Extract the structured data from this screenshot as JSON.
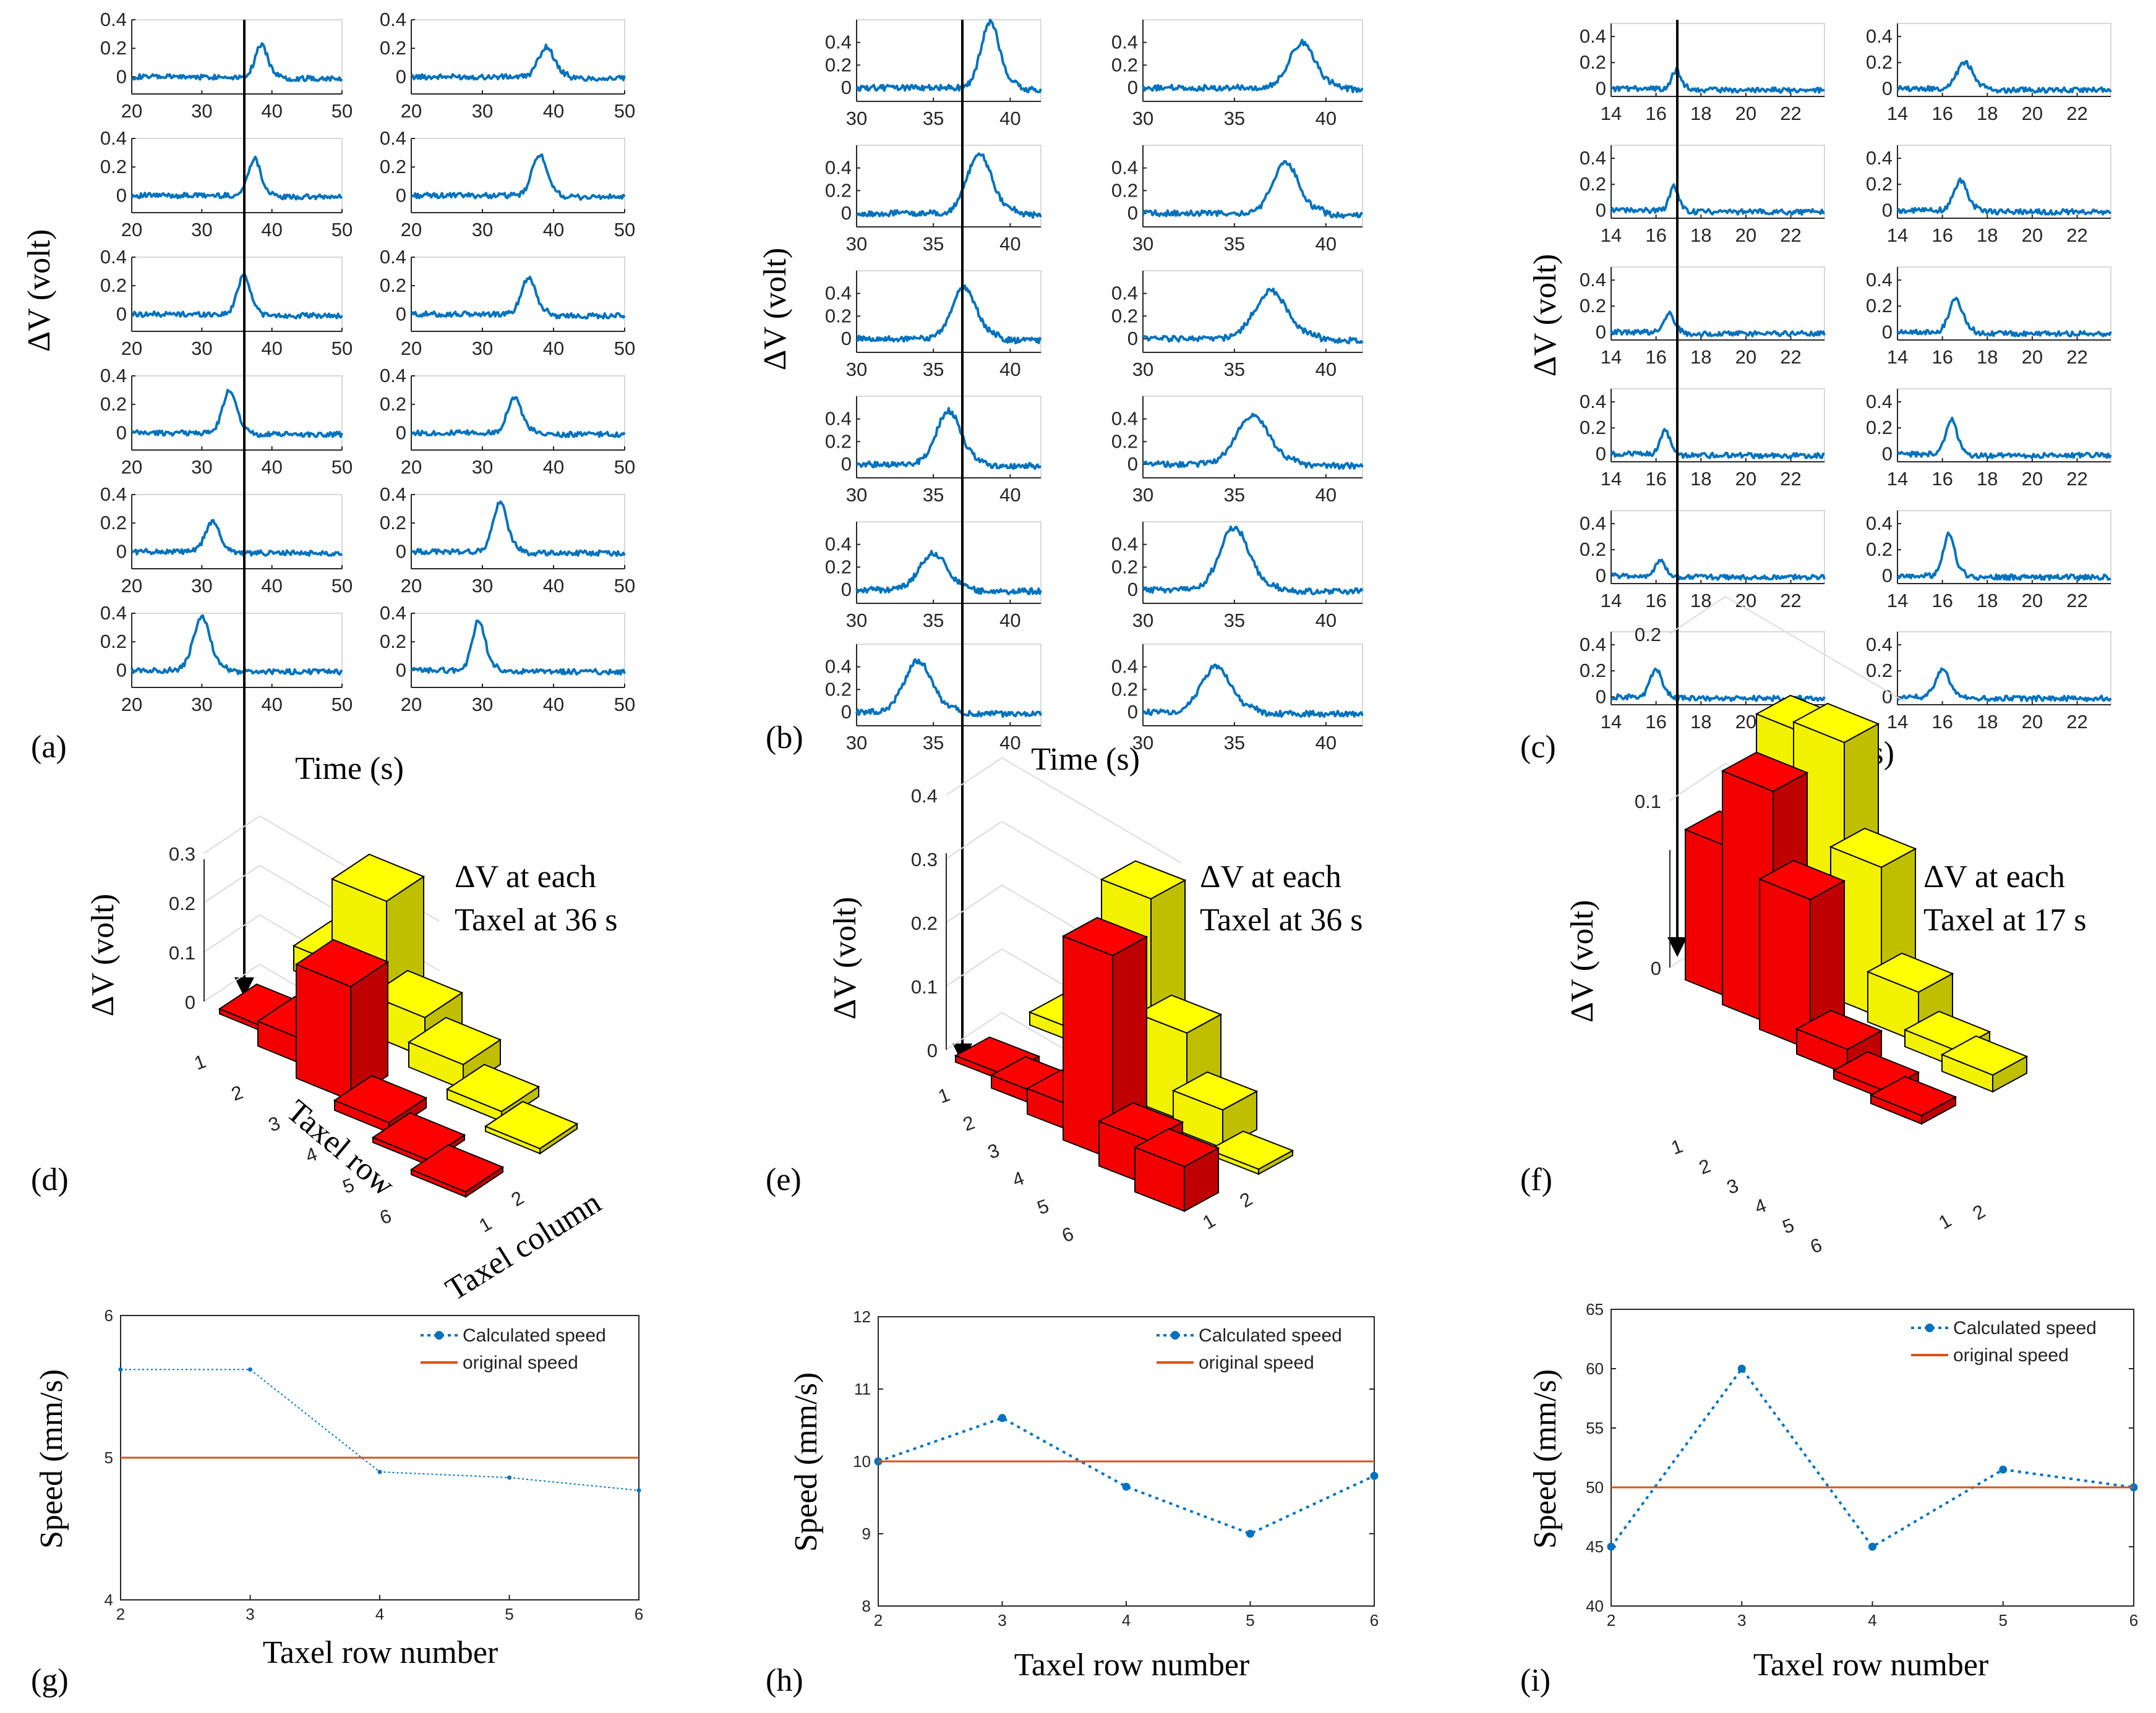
{
  "chart_data": [
    {
      "type": "line-grid",
      "panel": "a",
      "panel_label": "(a)",
      "grid": "6 rows x 2 columns of taxel voltage traces",
      "ylabel": "ΔV (volt)",
      "xlabel": "Time (s)",
      "xlim": [
        20,
        50
      ],
      "ylim": [
        -0.12,
        0.4
      ],
      "xticks": [
        "20",
        "30",
        "40",
        "50"
      ],
      "yticks": [
        "0.4",
        "0.2",
        "0"
      ],
      "marker_time_s": 36,
      "series_color": "#0072BD",
      "traces": [
        {
          "row": 1,
          "col": 1,
          "peak_t": 38.5,
          "peak_v": 0.22,
          "width": 0.9
        },
        {
          "row": 1,
          "col": 2,
          "peak_t": 39.0,
          "peak_v": 0.21,
          "width": 1.1
        },
        {
          "row": 2,
          "col": 1,
          "peak_t": 37.5,
          "peak_v": 0.26,
          "width": 0.9
        },
        {
          "row": 2,
          "col": 2,
          "peak_t": 38.0,
          "peak_v": 0.29,
          "width": 1.0
        },
        {
          "row": 3,
          "col": 1,
          "peak_t": 36.0,
          "peak_v": 0.28,
          "width": 0.9
        },
        {
          "row": 3,
          "col": 2,
          "peak_t": 36.5,
          "peak_v": 0.26,
          "width": 1.0
        },
        {
          "row": 4,
          "col": 1,
          "peak_t": 34.0,
          "peak_v": 0.3,
          "width": 1.0
        },
        {
          "row": 4,
          "col": 2,
          "peak_t": 34.5,
          "peak_v": 0.25,
          "width": 1.0
        },
        {
          "row": 5,
          "col": 1,
          "peak_t": 31.5,
          "peak_v": 0.21,
          "width": 1.0
        },
        {
          "row": 5,
          "col": 2,
          "peak_t": 32.5,
          "peak_v": 0.34,
          "width": 1.0
        },
        {
          "row": 6,
          "col": 1,
          "peak_t": 30.0,
          "peak_v": 0.37,
          "width": 1.2
        },
        {
          "row": 6,
          "col": 2,
          "peak_t": 29.5,
          "peak_v": 0.35,
          "width": 0.9
        }
      ]
    },
    {
      "type": "line-grid",
      "panel": "b",
      "panel_label": "(b)",
      "grid": "6 rows x 2 columns of taxel voltage traces",
      "ylabel": "ΔV (volt)",
      "xlabel": "Time (s)",
      "xlim": [
        30,
        42
      ],
      "ylim": [
        -0.12,
        0.6
      ],
      "xticks": [
        "30",
        "35",
        "40"
      ],
      "yticks": [
        "0.4",
        "0.2",
        "0"
      ],
      "marker_time_s": 36,
      "series_color": "#0072BD",
      "traces": [
        {
          "row": 1,
          "col": 1,
          "peak_t": 38.7,
          "peak_v": 0.58,
          "width": 0.6
        },
        {
          "row": 1,
          "col": 2,
          "peak_t": 38.7,
          "peak_v": 0.4,
          "width": 0.7
        },
        {
          "row": 2,
          "col": 1,
          "peak_t": 38.0,
          "peak_v": 0.52,
          "width": 0.8
        },
        {
          "row": 2,
          "col": 2,
          "peak_t": 37.8,
          "peak_v": 0.45,
          "width": 0.7
        },
        {
          "row": 3,
          "col": 1,
          "peak_t": 37.0,
          "peak_v": 0.45,
          "width": 0.8
        },
        {
          "row": 3,
          "col": 2,
          "peak_t": 37.0,
          "peak_v": 0.42,
          "width": 0.9
        },
        {
          "row": 4,
          "col": 1,
          "peak_t": 36.0,
          "peak_v": 0.47,
          "width": 0.8
        },
        {
          "row": 4,
          "col": 2,
          "peak_t": 36.0,
          "peak_v": 0.43,
          "width": 0.9
        },
        {
          "row": 5,
          "col": 1,
          "peak_t": 35.0,
          "peak_v": 0.32,
          "width": 0.9
        },
        {
          "row": 5,
          "col": 2,
          "peak_t": 35.0,
          "peak_v": 0.55,
          "width": 0.8
        },
        {
          "row": 6,
          "col": 1,
          "peak_t": 34.0,
          "peak_v": 0.45,
          "width": 0.9
        },
        {
          "row": 6,
          "col": 2,
          "peak_t": 34.0,
          "peak_v": 0.4,
          "width": 0.8
        }
      ]
    },
    {
      "type": "line-grid",
      "panel": "c",
      "panel_label": "(c)",
      "grid": "6 rows x 2 columns of taxel voltage traces",
      "ylabel": "ΔV (volt)",
      "xlabel": "Time (s)",
      "xlim": [
        14,
        23.5
      ],
      "ylim": [
        -0.06,
        0.5
      ],
      "xticks": [
        "14",
        "16",
        "18",
        "20",
        "22"
      ],
      "yticks": [
        "0.4",
        "0.2",
        "0"
      ],
      "marker_time_s": 17,
      "series_color": "#0072BD",
      "traces": [
        {
          "row": 1,
          "col": 1,
          "peak_t": 16.9,
          "peak_v": 0.14,
          "width": 0.2
        },
        {
          "row": 1,
          "col": 2,
          "peak_t": 17.0,
          "peak_v": 0.2,
          "width": 0.35
        },
        {
          "row": 2,
          "col": 1,
          "peak_t": 16.8,
          "peak_v": 0.18,
          "width": 0.2
        },
        {
          "row": 2,
          "col": 2,
          "peak_t": 16.8,
          "peak_v": 0.23,
          "width": 0.3
        },
        {
          "row": 3,
          "col": 1,
          "peak_t": 16.6,
          "peak_v": 0.16,
          "width": 0.2
        },
        {
          "row": 3,
          "col": 2,
          "peak_t": 16.6,
          "peak_v": 0.25,
          "width": 0.3
        },
        {
          "row": 4,
          "col": 1,
          "peak_t": 16.4,
          "peak_v": 0.19,
          "width": 0.2
        },
        {
          "row": 4,
          "col": 2,
          "peak_t": 16.4,
          "peak_v": 0.26,
          "width": 0.25
        },
        {
          "row": 5,
          "col": 1,
          "peak_t": 16.2,
          "peak_v": 0.12,
          "width": 0.2
        },
        {
          "row": 5,
          "col": 2,
          "peak_t": 16.3,
          "peak_v": 0.32,
          "width": 0.25
        },
        {
          "row": 6,
          "col": 1,
          "peak_t": 16.0,
          "peak_v": 0.22,
          "width": 0.25
        },
        {
          "row": 6,
          "col": 2,
          "peak_t": 16.0,
          "peak_v": 0.21,
          "width": 0.3
        }
      ]
    },
    {
      "type": "bar3d",
      "panel": "d",
      "panel_label": "(d)",
      "title_line1": "ΔV at each",
      "title_line2": "Taxel at 36 s",
      "zlabel": "ΔV (volt)",
      "xlabel": "Taxel row",
      "ylabel": "Taxel column",
      "zlim": [
        0,
        0.3
      ],
      "zticks": [
        "0.3",
        "0.2",
        "0.1",
        "0"
      ],
      "rows": [
        "1",
        "2",
        "3",
        "4",
        "5",
        "6"
      ],
      "columns": [
        "1",
        "2"
      ],
      "column_colors": [
        "#FF0000",
        "#FFFF00"
      ],
      "values": [
        {
          "row": 1,
          "col1": 0.01,
          "col2": 0.05
        },
        {
          "row": 2,
          "col1": 0.05,
          "col2": 0.25
        },
        {
          "row": 3,
          "col1": 0.23,
          "col2": 0.08
        },
        {
          "row": 4,
          "col1": 0.02,
          "col2": 0.05
        },
        {
          "row": 5,
          "col1": 0.005,
          "col2": 0.02
        },
        {
          "row": 6,
          "col1": 0.01,
          "col2": 0.0
        }
      ]
    },
    {
      "type": "bar3d",
      "panel": "e",
      "panel_label": "(e)",
      "title_line1": "ΔV at each",
      "title_line2": "Taxel at 36 s",
      "zlabel": "ΔV (volt)",
      "xlabel": "",
      "ylabel": "",
      "zlim": [
        0,
        0.45
      ],
      "zticks": [
        "0.4",
        "0.3",
        "0.2",
        "0.1",
        "0"
      ],
      "rows": [
        "1",
        "2",
        "3",
        "4",
        "5",
        "6"
      ],
      "columns": [
        "1",
        "2"
      ],
      "column_colors": [
        "#FF0000",
        "#FFFF00"
      ],
      "values": [
        {
          "row": 1,
          "col1": 0.01,
          "col2": 0.02
        },
        {
          "row": 2,
          "col1": 0.02,
          "col2": 0.03
        },
        {
          "row": 3,
          "col1": 0.04,
          "col2": 0.31
        },
        {
          "row": 4,
          "col1": 0.32,
          "col2": 0.14
        },
        {
          "row": 5,
          "col1": 0.07,
          "col2": 0.06
        },
        {
          "row": 6,
          "col1": 0.07,
          "col2": 0.0
        }
      ]
    },
    {
      "type": "bar3d",
      "panel": "f",
      "panel_label": "(f)",
      "title_line1": "ΔV at each",
      "title_line2": "Taxel at 17 s",
      "zlabel": "ΔV (volt)",
      "xlabel": "",
      "ylabel": "",
      "zlim": [
        0,
        0.2
      ],
      "zticks": [
        "0.2",
        "0.1",
        "0"
      ],
      "rows": [
        "1",
        "2",
        "3",
        "4",
        "5",
        "6"
      ],
      "columns": [
        "1",
        "2"
      ],
      "column_colors": [
        "#FF0000",
        "#FFFF00"
      ],
      "values": [
        {
          "row": 1,
          "col1": 0.09,
          "col2": 0.14
        },
        {
          "row": 2,
          "col1": 0.14,
          "col2": 0.15
        },
        {
          "row": 3,
          "col1": 0.09,
          "col2": 0.09
        },
        {
          "row": 4,
          "col1": 0.015,
          "col2": 0.03
        },
        {
          "row": 5,
          "col1": 0.005,
          "col2": 0.01
        },
        {
          "row": 6,
          "col1": 0.005,
          "col2": 0.01
        }
      ]
    },
    {
      "type": "line",
      "panel": "g",
      "panel_label": "(g)",
      "xlabel": "Taxel row number",
      "ylabel": "Speed (mm/s)",
      "xlim": [
        2,
        6
      ],
      "ylim": [
        4,
        6
      ],
      "xticks": [
        "2",
        "3",
        "4",
        "5",
        "6"
      ],
      "yticks": [
        "6",
        "5",
        "4"
      ],
      "x": [
        2,
        3,
        4,
        5,
        6
      ],
      "series": [
        {
          "name": "Calculated speed",
          "color": "#0072BD",
          "style": "dotted-marker",
          "values": [
            5.62,
            5.62,
            4.9,
            4.86,
            4.77
          ]
        },
        {
          "name": "original speed",
          "color": "#D95319",
          "style": "solid",
          "values": [
            5,
            5,
            5,
            5,
            5
          ]
        }
      ],
      "legend": "top-right"
    },
    {
      "type": "line",
      "panel": "h",
      "panel_label": "(h)",
      "xlabel": "Taxel row number",
      "ylabel": "Speed (mm/s)",
      "xlim": [
        2,
        6
      ],
      "ylim": [
        8,
        12
      ],
      "xticks": [
        "2",
        "3",
        "4",
        "5",
        "6"
      ],
      "yticks": [
        "12",
        "11",
        "10",
        "9",
        "8"
      ],
      "x": [
        2,
        3,
        4,
        5,
        6
      ],
      "series": [
        {
          "name": "Calculated speed",
          "color": "#0072BD",
          "style": "dotted-marker",
          "values": [
            10.0,
            10.6,
            9.65,
            9.0,
            9.8
          ]
        },
        {
          "name": "original speed",
          "color": "#D95319",
          "style": "solid",
          "values": [
            10,
            10,
            10,
            10,
            10
          ]
        }
      ],
      "legend": "top-right"
    },
    {
      "type": "line",
      "panel": "i",
      "panel_label": "(i)",
      "xlabel": "Taxel row number",
      "ylabel": "Speed (mm/s)",
      "xlim": [
        2,
        6
      ],
      "ylim": [
        40,
        65
      ],
      "xticks": [
        "2",
        "3",
        "4",
        "5",
        "6"
      ],
      "yticks": [
        "65",
        "60",
        "55",
        "50",
        "45",
        "40"
      ],
      "x": [
        2,
        3,
        4,
        5,
        6
      ],
      "series": [
        {
          "name": "Calculated speed",
          "color": "#0072BD",
          "style": "dotted-marker",
          "values": [
            45,
            60,
            45,
            51.5,
            50
          ]
        },
        {
          "name": "original speed",
          "color": "#D95319",
          "style": "solid",
          "values": [
            50,
            50,
            50,
            50,
            50
          ]
        }
      ],
      "legend": "top-right"
    }
  ]
}
